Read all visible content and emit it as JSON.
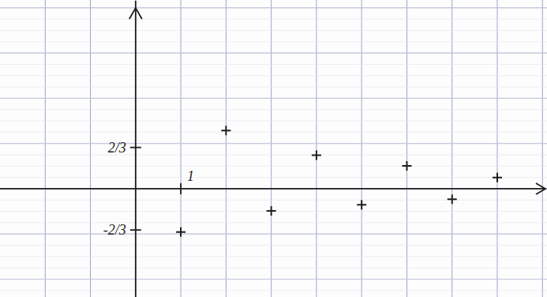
{
  "chart_data": {
    "type": "scatter",
    "x": [
      1,
      2,
      3,
      4,
      5,
      6,
      7,
      8
    ],
    "values": [
      -0.7,
      0.94,
      -0.36,
      0.54,
      -0.26,
      0.37,
      -0.17,
      0.18
    ],
    "xlim": [
      -3,
      9.1
    ],
    "ylim": [
      -1.75,
      3.05
    ],
    "xticks": [
      1
    ],
    "yticks": [
      {
        "value": 0.6667,
        "label": "2/3"
      },
      {
        "value": -0.6667,
        "label": "-2/3"
      }
    ],
    "grid": true,
    "marker": "plus",
    "color": "#1e1e1e"
  }
}
